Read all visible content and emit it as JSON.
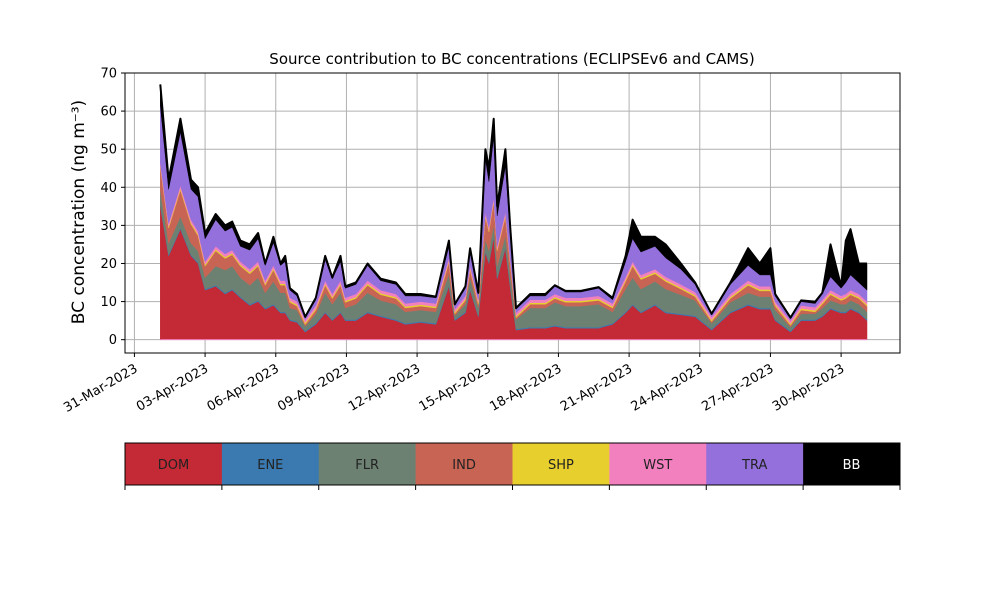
{
  "chart_data": {
    "type": "area",
    "stacked": true,
    "title": "Source contribution to BC concentrations (ECLIPSEv6 and CAMS)",
    "ylabel": "BC concentration (ng m⁻³)",
    "xlabel": "",
    "ylim": [
      -3.5,
      70
    ],
    "yticks": [
      0,
      10,
      20,
      30,
      40,
      50,
      60,
      70
    ],
    "x_unit": "days since 2023-03-31 00:00",
    "xlim": [
      -0.4,
      32.5
    ],
    "xticks": [
      0,
      3,
      6,
      9,
      12,
      15,
      18,
      21,
      24,
      27,
      30
    ],
    "xtick_labels": [
      "31-Mar-2023",
      "03-Apr-2023",
      "06-Apr-2023",
      "09-Apr-2023",
      "12-Apr-2023",
      "15-Apr-2023",
      "18-Apr-2023",
      "21-Apr-2023",
      "24-Apr-2023",
      "27-Apr-2023",
      "30-Apr-2023"
    ],
    "grid": true,
    "x": [
      1.1,
      1.45,
      1.95,
      2.4,
      2.7,
      3.0,
      3.45,
      3.85,
      4.15,
      4.5,
      4.9,
      5.25,
      5.55,
      5.9,
      6.2,
      6.4,
      6.6,
      6.9,
      7.25,
      7.7,
      8.1,
      8.4,
      8.75,
      8.95,
      9.4,
      9.9,
      10.45,
      11.1,
      11.5,
      12.15,
      12.8,
      13.35,
      13.6,
      14.05,
      14.25,
      14.6,
      14.9,
      15.05,
      15.25,
      15.4,
      15.75,
      15.95,
      16.2,
      16.8,
      17.45,
      17.85,
      18.3,
      18.95,
      19.7,
      20.3,
      20.85,
      21.15,
      21.5,
      22.1,
      22.55,
      23.2,
      23.8,
      24.5,
      25.3,
      26.05,
      26.55,
      27.0,
      27.2,
      27.85,
      28.3,
      28.9,
      29.2,
      29.55,
      30.0,
      30.2,
      30.4,
      30.75,
      31.1
    ],
    "series": [
      {
        "name": "DOM",
        "color": "#c42a36",
        "values": [
          35,
          22,
          29,
          22,
          20,
          13,
          14,
          12,
          13,
          11,
          9,
          10,
          8,
          9,
          7,
          7,
          5,
          4.5,
          2,
          4,
          7,
          5,
          7,
          5,
          5,
          7,
          6,
          5,
          4,
          4.5,
          4,
          14,
          5,
          7,
          13,
          6,
          23,
          20,
          27,
          16,
          24,
          14,
          2.5,
          3,
          3,
          3.5,
          3,
          3,
          3,
          4,
          7,
          9,
          7,
          9,
          7,
          6.5,
          6,
          2.5,
          7,
          9,
          8,
          8,
          5,
          2,
          5,
          5,
          6,
          8,
          7,
          7,
          8,
          7,
          5
        ]
      },
      {
        "name": "ENE",
        "color": "#3a7ab0",
        "values": [
          0.3,
          0.3,
          0.3,
          0.3,
          0.3,
          0.3,
          0.3,
          0.3,
          0.3,
          0.3,
          0.3,
          0.3,
          0.3,
          0.3,
          0.3,
          0.3,
          0.3,
          0.3,
          0.3,
          0.3,
          0.3,
          0.3,
          0.3,
          0.3,
          0.3,
          0.3,
          0.3,
          0.3,
          0.3,
          0.3,
          0.3,
          0.3,
          0.3,
          0.3,
          0.3,
          0.3,
          0.3,
          0.3,
          0.3,
          0.3,
          0.3,
          0.3,
          0.3,
          0.3,
          0.3,
          0.3,
          0.3,
          0.3,
          0.3,
          0.3,
          0.3,
          0.3,
          0.3,
          0.3,
          0.3,
          0.3,
          0.3,
          0.3,
          0.3,
          0.3,
          0.3,
          0.3,
          0.3,
          0.3,
          0.3,
          0.3,
          0.3,
          0.3,
          0.3,
          0.3,
          0.3,
          0.3,
          0.3
        ]
      },
      {
        "name": "FLR",
        "color": "#6d8172",
        "values": [
          4,
          3,
          3,
          3,
          3,
          3,
          5,
          6,
          6,
          5,
          5,
          6,
          4,
          6,
          5,
          5,
          3,
          3,
          1.2,
          2.5,
          5,
          4,
          5,
          3,
          4,
          5,
          4,
          4,
          3,
          3,
          3,
          3,
          1,
          2,
          3,
          2,
          3,
          3,
          3,
          3,
          3,
          3,
          2.5,
          5,
          5,
          6,
          5.5,
          5.5,
          6,
          3,
          6,
          7,
          6,
          6,
          6,
          5,
          4,
          1.5,
          2.5,
          3,
          3,
          3,
          2.5,
          1,
          1.5,
          1.5,
          2,
          2,
          2,
          2,
          2,
          2,
          2
        ]
      },
      {
        "name": "IND",
        "color": "#c76454",
        "values": [
          6,
          4,
          7,
          5,
          4,
          3,
          4,
          3,
          3,
          3,
          3,
          3,
          2,
          3,
          2,
          2,
          1.5,
          1,
          0.5,
          1,
          2,
          1.5,
          2,
          1.5,
          1.5,
          2,
          1.5,
          1.5,
          1,
          1,
          1,
          3,
          0.5,
          1,
          2,
          1,
          6,
          5,
          6,
          4,
          5,
          3,
          0.5,
          1,
          1,
          1,
          1,
          1,
          1,
          1,
          2,
          3,
          2.5,
          2,
          2,
          1.5,
          1,
          0.5,
          1,
          2,
          1.5,
          1.5,
          1,
          0.5,
          1,
          0.5,
          1,
          1.5,
          1,
          1.5,
          1.5,
          1.5,
          1.5
        ]
      },
      {
        "name": "SHP",
        "color": "#e7cf2e",
        "values": [
          0.4,
          0.4,
          0.4,
          0.4,
          0.4,
          0.4,
          0.4,
          0.4,
          0.4,
          0.4,
          0.4,
          0.4,
          0.4,
          0.4,
          0.4,
          0.4,
          0.4,
          0.4,
          0.4,
          0.4,
          0.4,
          0.4,
          0.4,
          0.4,
          0.4,
          0.4,
          0.4,
          0.4,
          0.4,
          0.4,
          0.4,
          0.4,
          0.4,
          0.4,
          0.4,
          0.4,
          0.4,
          0.4,
          0.4,
          0.4,
          0.4,
          0.4,
          0.4,
          0.4,
          0.4,
          0.4,
          0.4,
          0.4,
          0.4,
          0.4,
          0.4,
          0.4,
          0.4,
          0.4,
          0.4,
          0.4,
          0.4,
          0.4,
          0.4,
          0.4,
          0.4,
          0.4,
          0.4,
          0.4,
          0.4,
          0.4,
          0.4,
          0.4,
          0.4,
          0.4,
          0.4,
          0.4,
          0.4
        ]
      },
      {
        "name": "WST",
        "color": "#f280bf",
        "values": [
          0.8,
          0.8,
          0.8,
          0.8,
          0.8,
          0.8,
          0.8,
          0.8,
          0.8,
          0.8,
          0.8,
          0.8,
          0.8,
          0.8,
          0.8,
          0.8,
          0.8,
          0.8,
          0.8,
          0.8,
          0.8,
          0.8,
          0.8,
          0.8,
          0.8,
          0.8,
          0.8,
          0.8,
          0.8,
          0.8,
          0.8,
          0.8,
          0.8,
          0.8,
          0.8,
          0.8,
          0.8,
          0.8,
          0.8,
          0.8,
          0.8,
          0.8,
          0.8,
          0.8,
          0.8,
          0.8,
          0.8,
          0.8,
          0.8,
          0.8,
          0.8,
          0.8,
          0.8,
          0.8,
          0.8,
          0.8,
          0.8,
          0.8,
          0.8,
          0.8,
          0.8,
          0.8,
          0.8,
          0.8,
          0.8,
          0.8,
          0.8,
          0.8,
          0.8,
          0.8,
          0.8,
          0.8,
          0.8
        ]
      },
      {
        "name": "TRA",
        "color": "#9370dc",
        "values": [
          15,
          9,
          14,
          8,
          9,
          6,
          7,
          6,
          6,
          4,
          5,
          6,
          4,
          6,
          4,
          5,
          2,
          1.5,
          0.5,
          1.5,
          5.5,
          4,
          5,
          2.5,
          2.5,
          4,
          2.5,
          2.5,
          2,
          1.5,
          1.5,
          3,
          1,
          2,
          4,
          1.5,
          14,
          12,
          16,
          8,
          12,
          7,
          1,
          1,
          1,
          2,
          1.5,
          1.5,
          2,
          1,
          4,
          6,
          6,
          6,
          5,
          4,
          2,
          0.5,
          2.5,
          4,
          3,
          3,
          1.5,
          0.5,
          1,
          1,
          1.5,
          3.5,
          2,
          3,
          4,
          3,
          3
        ]
      },
      {
        "name": "BB",
        "color": "#000000",
        "values": [
          5.5,
          2.5,
          3.5,
          2.5,
          2.5,
          1.5,
          1.5,
          1.5,
          1.5,
          1.5,
          1.5,
          1.5,
          0.5,
          1.5,
          0.5,
          1.5,
          0.5,
          0.5,
          0.3,
          0.5,
          1,
          0.3,
          1.5,
          0.5,
          0.5,
          0.5,
          0.5,
          0.5,
          0.5,
          0.5,
          0.3,
          1.5,
          0.3,
          0.5,
          0.5,
          0.3,
          2.5,
          3.5,
          4.5,
          2.5,
          4.5,
          1.5,
          0.3,
          0.5,
          0.5,
          0.3,
          0.3,
          0.3,
          0.3,
          0.5,
          1.5,
          5,
          4,
          2.5,
          3.5,
          1.5,
          0.5,
          0.3,
          0.5,
          4.5,
          3,
          7,
          0.5,
          0.3,
          0.3,
          0.5,
          0.3,
          8.5,
          0.5,
          11,
          12,
          5,
          7
        ]
      }
    ],
    "colorbar": {
      "labels": [
        "DOM",
        "ENE",
        "FLR",
        "IND",
        "SHP",
        "WST",
        "TRA",
        "BB"
      ],
      "colors": [
        "#c42a36",
        "#3a7ab0",
        "#6d8172",
        "#c76454",
        "#e7cf2e",
        "#f280bf",
        "#9370dc",
        "#000000"
      ],
      "text_colors": [
        "#222222",
        "#222222",
        "#222222",
        "#222222",
        "#222222",
        "#222222",
        "#222222",
        "#ffffff"
      ]
    }
  }
}
